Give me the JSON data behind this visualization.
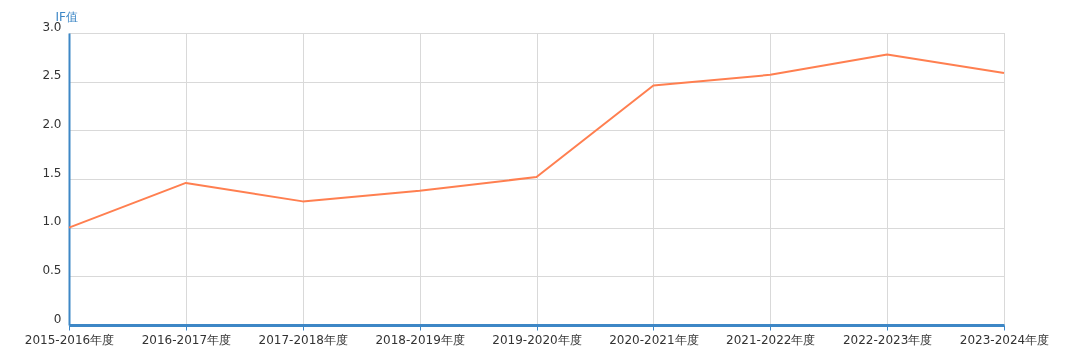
{
  "chart_data": {
    "type": "line",
    "ylabel": "IF值",
    "categories": [
      "2015-2016年度",
      "2016-2017年度",
      "2017-2018年度",
      "2018-2019年度",
      "2019-2020年度",
      "2020-2021年度",
      "2021-2022年度",
      "2022-2023年度",
      "2023-2024年度"
    ],
    "series": [
      {
        "color": "#ff7f50",
        "values": [
          1.0,
          1.46,
          1.27,
          1.38,
          1.52,
          2.46,
          2.57,
          2.78,
          2.59
        ]
      }
    ],
    "ylim": [
      0,
      3
    ],
    "yticks": [
      0,
      0.5,
      {
        "value": 1,
        "label": "1.0"
      },
      1.5,
      {
        "value": 2,
        "label": "2.0"
      },
      2.5,
      {
        "value": 3,
        "label": "3.0"
      }
    ],
    "grid": true
  }
}
